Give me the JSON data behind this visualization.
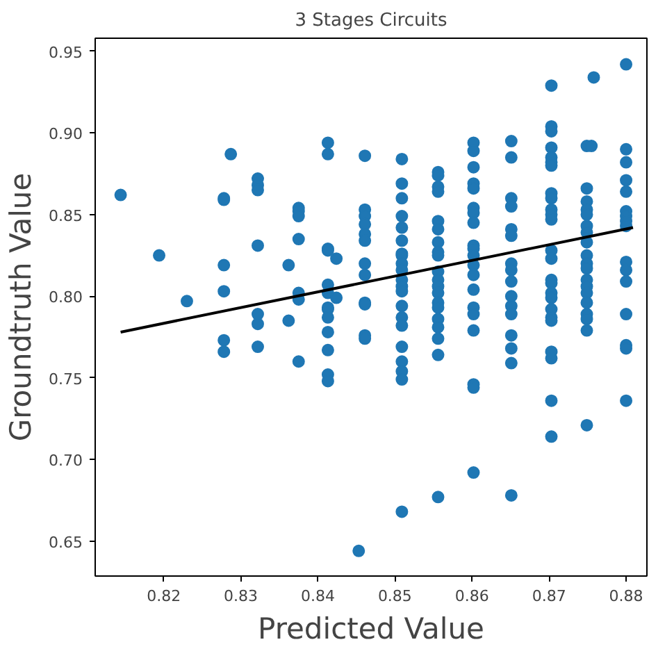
{
  "chart_data": {
    "type": "scatter",
    "title": "3 Stages Circuits",
    "xlabel": "Predicted Value",
    "ylabel": "Groundtruth Value",
    "xlim": [
      0.8111,
      0.8827
    ],
    "ylim": [
      0.6286,
      0.958
    ],
    "xticks": [
      0.82,
      0.83,
      0.84,
      0.85,
      0.86,
      0.87,
      0.88
    ],
    "yticks": [
      0.65,
      {
        "value": 0.7,
        "label": "0.70"
      },
      0.75,
      {
        "value": 0.8,
        "label": "0.80"
      },
      0.85,
      {
        "value": 0.9,
        "label": "0.90"
      },
      0.95
    ],
    "grid": false,
    "marker": "circle",
    "series": [
      {
        "color": "#1f77b4",
        "x": [
          0.8144,
          0.8194,
          0.823,
          0.8278,
          0.8278,
          0.8278,
          0.8278,
          0.8278,
          0.8278,
          0.8287,
          0.8322,
          0.8322,
          0.8322,
          0.8322,
          0.8322,
          0.8322,
          0.8322,
          0.8362,
          0.8362,
          0.8375,
          0.8375,
          0.8375,
          0.8375,
          0.8375,
          0.8375,
          0.8375,
          0.8413,
          0.8413,
          0.8413,
          0.8413,
          0.8413,
          0.8413,
          0.8413,
          0.8413,
          0.8413,
          0.8413,
          0.8413,
          0.8413,
          0.8413,
          0.8424,
          0.8424,
          0.8461,
          0.8461,
          0.8461,
          0.8461,
          0.8461,
          0.8461,
          0.8461,
          0.8461,
          0.8461,
          0.8461,
          0.8461,
          0.8461,
          0.8453,
          0.8509,
          0.8509,
          0.8509,
          0.8509,
          0.8509,
          0.8509,
          0.8509,
          0.8509,
          0.8509,
          0.8509,
          0.8509,
          0.8509,
          0.8509,
          0.8509,
          0.8509,
          0.8509,
          0.8509,
          0.8509,
          0.8509,
          0.8509,
          0.8509,
          0.8556,
          0.8556,
          0.8556,
          0.8556,
          0.8556,
          0.8556,
          0.8556,
          0.8556,
          0.8556,
          0.8556,
          0.8556,
          0.8556,
          0.8556,
          0.8556,
          0.8556,
          0.8556,
          0.8556,
          0.8556,
          0.8556,
          0.8556,
          0.8602,
          0.8602,
          0.8602,
          0.8602,
          0.8602,
          0.8602,
          0.8602,
          0.8602,
          0.8602,
          0.8602,
          0.8602,
          0.8602,
          0.8602,
          0.8602,
          0.8602,
          0.8602,
          0.8602,
          0.8602,
          0.8602,
          0.8602,
          0.8651,
          0.8651,
          0.8651,
          0.8651,
          0.8651,
          0.8651,
          0.8651,
          0.8651,
          0.8651,
          0.8651,
          0.8651,
          0.8651,
          0.8651,
          0.8651,
          0.8651,
          0.8651,
          0.8703,
          0.8703,
          0.8703,
          0.8703,
          0.8703,
          0.8703,
          0.8703,
          0.8703,
          0.8703,
          0.8703,
          0.8703,
          0.8703,
          0.8703,
          0.8703,
          0.8703,
          0.8703,
          0.8703,
          0.8703,
          0.8703,
          0.8703,
          0.8703,
          0.8703,
          0.8703,
          0.8703,
          0.8703,
          0.8749,
          0.8755,
          0.8749,
          0.8749,
          0.8749,
          0.8749,
          0.8749,
          0.8749,
          0.8749,
          0.8749,
          0.8749,
          0.8749,
          0.8749,
          0.8749,
          0.8749,
          0.8749,
          0.8749,
          0.8749,
          0.8749,
          0.8749,
          0.8758,
          0.88,
          0.88,
          0.88,
          0.88,
          0.88,
          0.88,
          0.88,
          0.88,
          0.88,
          0.88,
          0.88,
          0.88,
          0.88,
          0.88,
          0.88,
          0.88
        ],
        "values": [
          0.862,
          0.825,
          0.797,
          0.86,
          0.859,
          0.803,
          0.819,
          0.773,
          0.766,
          0.887,
          0.872,
          0.868,
          0.865,
          0.831,
          0.789,
          0.783,
          0.769,
          0.819,
          0.785,
          0.854,
          0.852,
          0.849,
          0.835,
          0.802,
          0.798,
          0.76,
          0.894,
          0.887,
          0.829,
          0.828,
          0.807,
          0.802,
          0.793,
          0.792,
          0.787,
          0.778,
          0.767,
          0.752,
          0.748,
          0.823,
          0.799,
          0.886,
          0.853,
          0.849,
          0.844,
          0.838,
          0.834,
          0.82,
          0.813,
          0.796,
          0.795,
          0.776,
          0.774,
          0.644,
          0.884,
          0.869,
          0.86,
          0.849,
          0.842,
          0.834,
          0.826,
          0.825,
          0.82,
          0.816,
          0.81,
          0.806,
          0.803,
          0.794,
          0.787,
          0.782,
          0.769,
          0.76,
          0.754,
          0.749,
          0.668,
          0.876,
          0.874,
          0.867,
          0.864,
          0.846,
          0.841,
          0.833,
          0.827,
          0.825,
          0.815,
          0.81,
          0.806,
          0.802,
          0.796,
          0.793,
          0.786,
          0.781,
          0.774,
          0.764,
          0.677,
          0.894,
          0.889,
          0.879,
          0.869,
          0.866,
          0.854,
          0.851,
          0.845,
          0.831,
          0.829,
          0.825,
          0.819,
          0.813,
          0.804,
          0.793,
          0.789,
          0.779,
          0.746,
          0.744,
          0.692,
          0.895,
          0.885,
          0.86,
          0.855,
          0.841,
          0.837,
          0.82,
          0.816,
          0.809,
          0.8,
          0.794,
          0.789,
          0.776,
          0.768,
          0.759,
          0.678,
          0.929,
          0.904,
          0.901,
          0.891,
          0.885,
          0.882,
          0.88,
          0.863,
          0.86,
          0.853,
          0.85,
          0.847,
          0.828,
          0.823,
          0.81,
          0.808,
          0.802,
          0.799,
          0.792,
          0.787,
          0.785,
          0.766,
          0.762,
          0.736,
          0.714,
          0.892,
          0.892,
          0.866,
          0.858,
          0.853,
          0.85,
          0.843,
          0.839,
          0.833,
          0.825,
          0.82,
          0.817,
          0.81,
          0.806,
          0.802,
          0.796,
          0.789,
          0.786,
          0.779,
          0.721,
          0.934,
          0.942,
          0.89,
          0.882,
          0.871,
          0.864,
          0.852,
          0.849,
          0.846,
          0.843,
          0.821,
          0.816,
          0.809,
          0.789,
          0.77,
          0.768,
          0.736
        ]
      },
      {
        "type": "line",
        "color": "#000000",
        "marker": "none",
        "x": [
          0.8144,
          0.8809
        ],
        "values": [
          0.778,
          0.842
        ]
      }
    ]
  }
}
